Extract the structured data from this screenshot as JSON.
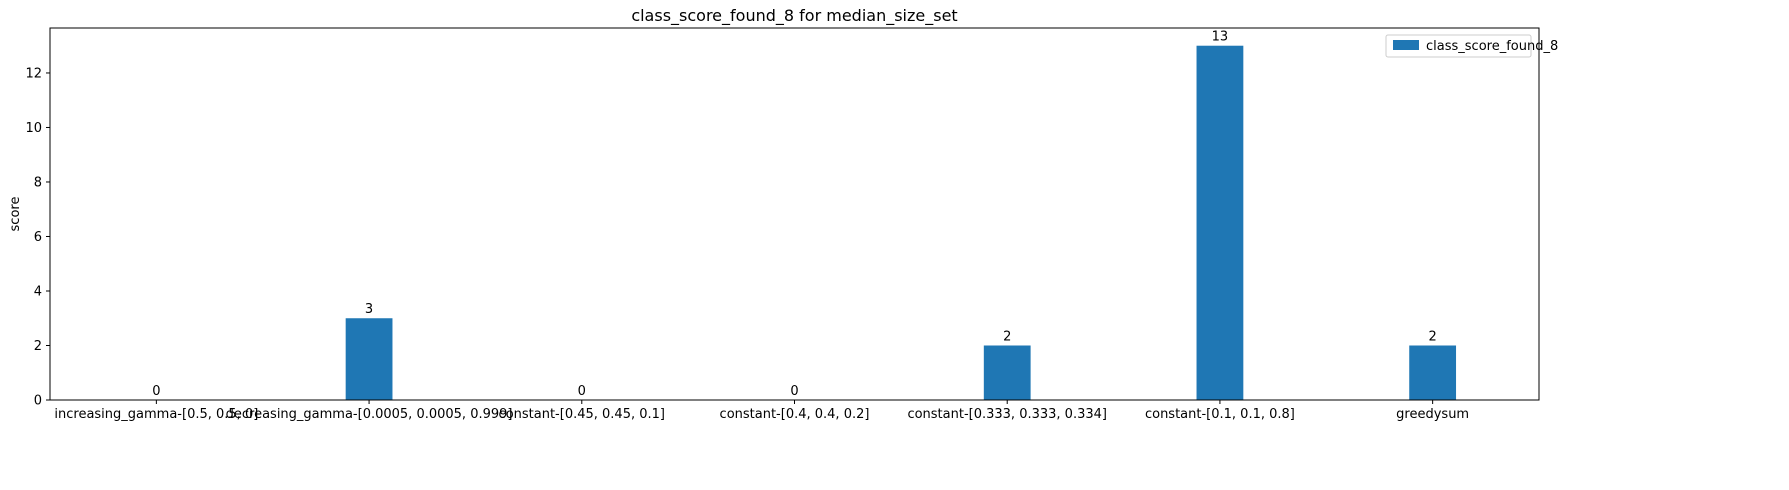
{
  "chart_data": {
    "type": "bar",
    "title": "class_score_found_8 for median_size_set",
    "xlabel": "",
    "ylabel": "score",
    "categories": [
      "increasing_gamma-[0.5, 0.5, 0]",
      "decreasing_gamma-[0.0005, 0.0005, 0.999]",
      "constant-[0.45, 0.45, 0.1]",
      "constant-[0.4, 0.4, 0.2]",
      "constant-[0.333, 0.333, 0.334]",
      "constant-[0.1, 0.1, 0.8]",
      "greedysum"
    ],
    "series": [
      {
        "name": "class_score_found_8",
        "values": [
          0,
          3,
          0,
          0,
          2,
          13,
          2
        ],
        "color": "#1f77b4"
      }
    ],
    "data_labels": [
      "0",
      "3",
      "0",
      "0",
      "2",
      "13",
      "2"
    ],
    "ylim": [
      0,
      13.65
    ],
    "yticks": [
      0,
      2,
      4,
      6,
      8,
      10,
      12
    ],
    "grid": false,
    "legend": "upper right"
  }
}
